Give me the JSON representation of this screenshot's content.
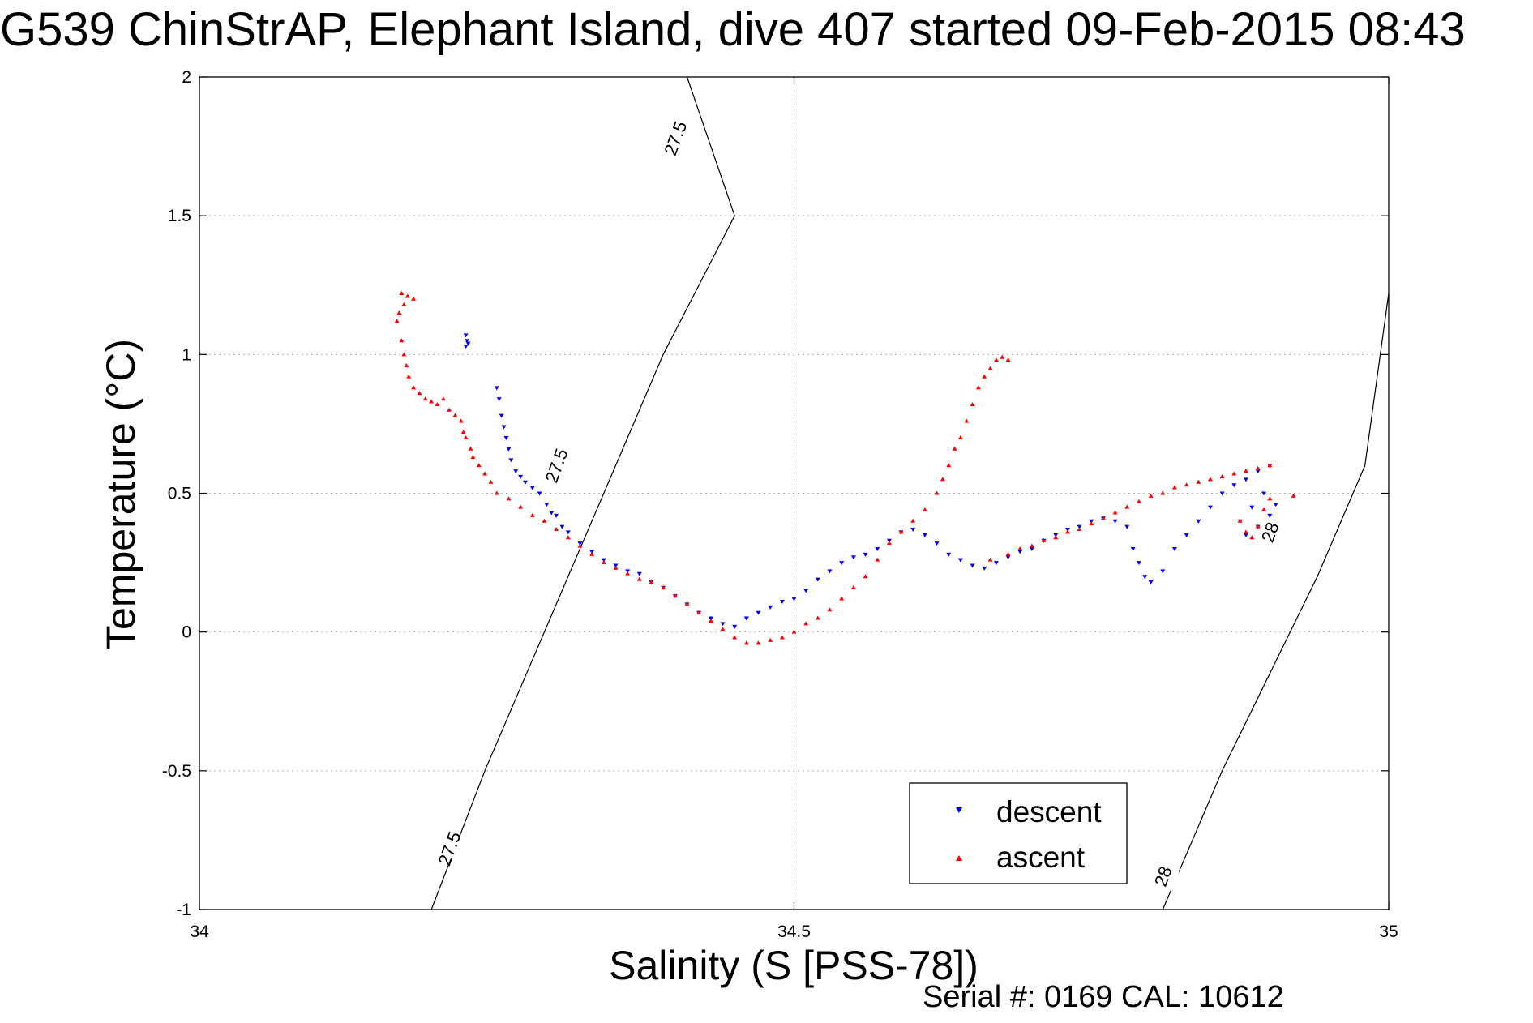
{
  "chart_data": {
    "type": "scatter",
    "title": "G539 ChinStrAP, Elephant Island, dive 407 started 09-Feb-2015 08:43",
    "xlabel": "Salinity (S [PSS-78])",
    "ylabel": "Temperature (°C)",
    "xlim": [
      34,
      35
    ],
    "ylim": [
      -1,
      2
    ],
    "xticks": [
      "34",
      "34.5",
      "35"
    ],
    "yticks": [
      "-1",
      "-0.5",
      "0",
      "0.5",
      "1",
      "1.5",
      "2"
    ],
    "grid": true,
    "legend_position": "bottom-right",
    "footer": "Serial #: 0169 CAL: 10612",
    "density_contours": [
      {
        "label": "27.5",
        "points": [
          [
            34.195,
            -1.0
          ],
          [
            34.24,
            -0.5
          ],
          [
            34.31,
            0.2
          ],
          [
            34.34,
            0.5
          ],
          [
            34.39,
            1.0
          ],
          [
            34.45,
            1.5
          ],
          [
            34.41,
            2.0
          ]
        ],
        "label_positions": [
          [
            34.21,
            -0.78
          ],
          [
            34.3,
            0.6
          ],
          [
            34.4,
            1.78
          ]
        ]
      },
      {
        "label": "28",
        "points": [
          [
            34.81,
            -1.0
          ],
          [
            34.86,
            -0.5
          ],
          [
            34.94,
            0.2
          ],
          [
            34.98,
            0.6
          ],
          [
            35.0,
            1.22
          ]
        ],
        "label_positions": [
          [
            34.81,
            -0.88
          ],
          [
            34.9,
            0.36
          ]
        ]
      }
    ],
    "series": [
      {
        "name": "descent",
        "color": "#0000ff",
        "marker": "triangle-down",
        "points": [
          [
            34.224,
            1.07
          ],
          [
            34.225,
            1.05
          ],
          [
            34.224,
            1.03
          ],
          [
            34.226,
            1.04
          ],
          [
            34.25,
            0.88
          ],
          [
            34.252,
            0.84
          ],
          [
            34.254,
            0.78
          ],
          [
            34.256,
            0.74
          ],
          [
            34.258,
            0.7
          ],
          [
            34.26,
            0.66
          ],
          [
            34.262,
            0.62
          ],
          [
            34.266,
            0.58
          ],
          [
            34.27,
            0.56
          ],
          [
            34.274,
            0.54
          ],
          [
            34.28,
            0.52
          ],
          [
            34.286,
            0.5
          ],
          [
            34.292,
            0.46
          ],
          [
            34.296,
            0.43
          ],
          [
            34.3,
            0.42
          ],
          [
            34.305,
            0.38
          ],
          [
            34.31,
            0.36
          ],
          [
            34.32,
            0.32
          ],
          [
            34.33,
            0.29
          ],
          [
            34.34,
            0.26
          ],
          [
            34.35,
            0.24
          ],
          [
            34.36,
            0.22
          ],
          [
            34.37,
            0.21
          ],
          [
            34.38,
            0.18
          ],
          [
            34.39,
            0.16
          ],
          [
            34.4,
            0.13
          ],
          [
            34.41,
            0.1
          ],
          [
            34.42,
            0.07
          ],
          [
            34.43,
            0.05
          ],
          [
            34.44,
            0.03
          ],
          [
            34.45,
            0.02
          ],
          [
            34.46,
            0.05
          ],
          [
            34.47,
            0.07
          ],
          [
            34.48,
            0.09
          ],
          [
            34.49,
            0.11
          ],
          [
            34.5,
            0.12
          ],
          [
            34.51,
            0.15
          ],
          [
            34.52,
            0.19
          ],
          [
            34.53,
            0.22
          ],
          [
            34.54,
            0.25
          ],
          [
            34.55,
            0.27
          ],
          [
            34.56,
            0.28
          ],
          [
            34.57,
            0.3
          ],
          [
            34.58,
            0.33
          ],
          [
            34.59,
            0.36
          ],
          [
            34.6,
            0.37
          ],
          [
            34.61,
            0.35
          ],
          [
            34.62,
            0.32
          ],
          [
            34.63,
            0.28
          ],
          [
            34.64,
            0.26
          ],
          [
            34.65,
            0.24
          ],
          [
            34.66,
            0.23
          ],
          [
            34.67,
            0.25
          ],
          [
            34.68,
            0.27
          ],
          [
            34.69,
            0.29
          ],
          [
            34.7,
            0.3
          ],
          [
            34.71,
            0.33
          ],
          [
            34.72,
            0.35
          ],
          [
            34.73,
            0.37
          ],
          [
            34.74,
            0.38
          ],
          [
            34.75,
            0.4
          ],
          [
            34.76,
            0.41
          ],
          [
            34.77,
            0.4
          ],
          [
            34.78,
            0.38
          ],
          [
            34.785,
            0.3
          ],
          [
            34.79,
            0.25
          ],
          [
            34.795,
            0.2
          ],
          [
            34.8,
            0.18
          ],
          [
            34.81,
            0.22
          ],
          [
            34.82,
            0.3
          ],
          [
            34.83,
            0.35
          ],
          [
            34.84,
            0.4
          ],
          [
            34.85,
            0.45
          ],
          [
            34.86,
            0.5
          ],
          [
            34.87,
            0.53
          ],
          [
            34.88,
            0.55
          ],
          [
            34.89,
            0.58
          ],
          [
            34.9,
            0.6
          ],
          [
            34.895,
            0.5
          ],
          [
            34.885,
            0.45
          ],
          [
            34.875,
            0.4
          ],
          [
            34.88,
            0.35
          ],
          [
            34.89,
            0.38
          ],
          [
            34.9,
            0.42
          ],
          [
            34.905,
            0.46
          ]
        ]
      },
      {
        "name": "ascent",
        "color": "#ff0000",
        "marker": "triangle-up",
        "points": [
          [
            34.17,
            1.22
          ],
          [
            34.175,
            1.21
          ],
          [
            34.18,
            1.2
          ],
          [
            34.172,
            1.18
          ],
          [
            34.168,
            1.15
          ],
          [
            34.166,
            1.12
          ],
          [
            34.17,
            1.05
          ],
          [
            34.172,
            1.0
          ],
          [
            34.174,
            0.96
          ],
          [
            34.176,
            0.92
          ],
          [
            34.18,
            0.88
          ],
          [
            34.185,
            0.86
          ],
          [
            34.19,
            0.84
          ],
          [
            34.195,
            0.83
          ],
          [
            34.2,
            0.82
          ],
          [
            34.205,
            0.84
          ],
          [
            34.21,
            0.8
          ],
          [
            34.215,
            0.78
          ],
          [
            34.22,
            0.76
          ],
          [
            34.222,
            0.72
          ],
          [
            34.224,
            0.7
          ],
          [
            34.228,
            0.66
          ],
          [
            34.23,
            0.63
          ],
          [
            34.235,
            0.6
          ],
          [
            34.24,
            0.57
          ],
          [
            34.245,
            0.54
          ],
          [
            34.25,
            0.5
          ],
          [
            34.26,
            0.48
          ],
          [
            34.27,
            0.45
          ],
          [
            34.28,
            0.42
          ],
          [
            34.29,
            0.4
          ],
          [
            34.3,
            0.37
          ],
          [
            34.31,
            0.34
          ],
          [
            34.32,
            0.31
          ],
          [
            34.33,
            0.28
          ],
          [
            34.34,
            0.25
          ],
          [
            34.35,
            0.23
          ],
          [
            34.36,
            0.21
          ],
          [
            34.37,
            0.19
          ],
          [
            34.38,
            0.18
          ],
          [
            34.39,
            0.16
          ],
          [
            34.4,
            0.13
          ],
          [
            34.41,
            0.1
          ],
          [
            34.42,
            0.07
          ],
          [
            34.43,
            0.04
          ],
          [
            34.44,
            0.01
          ],
          [
            34.45,
            -0.02
          ],
          [
            34.46,
            -0.04
          ],
          [
            34.47,
            -0.04
          ],
          [
            34.48,
            -0.03
          ],
          [
            34.49,
            -0.02
          ],
          [
            34.5,
            0.0
          ],
          [
            34.51,
            0.03
          ],
          [
            34.52,
            0.05
          ],
          [
            34.53,
            0.08
          ],
          [
            34.54,
            0.12
          ],
          [
            34.55,
            0.16
          ],
          [
            34.56,
            0.2
          ],
          [
            34.57,
            0.26
          ],
          [
            34.58,
            0.32
          ],
          [
            34.59,
            0.36
          ],
          [
            34.6,
            0.4
          ],
          [
            34.61,
            0.44
          ],
          [
            34.62,
            0.5
          ],
          [
            34.625,
            0.55
          ],
          [
            34.63,
            0.6
          ],
          [
            34.635,
            0.66
          ],
          [
            34.64,
            0.7
          ],
          [
            34.645,
            0.76
          ],
          [
            34.65,
            0.82
          ],
          [
            34.655,
            0.88
          ],
          [
            34.66,
            0.92
          ],
          [
            34.665,
            0.95
          ],
          [
            34.67,
            0.98
          ],
          [
            34.675,
            0.99
          ],
          [
            34.68,
            0.98
          ],
          [
            34.665,
            0.26
          ],
          [
            34.68,
            0.28
          ],
          [
            34.69,
            0.3
          ],
          [
            34.7,
            0.31
          ],
          [
            34.71,
            0.33
          ],
          [
            34.72,
            0.34
          ],
          [
            34.73,
            0.36
          ],
          [
            34.74,
            0.37
          ],
          [
            34.75,
            0.39
          ],
          [
            34.76,
            0.41
          ],
          [
            34.77,
            0.43
          ],
          [
            34.78,
            0.45
          ],
          [
            34.79,
            0.47
          ],
          [
            34.8,
            0.49
          ],
          [
            34.81,
            0.5
          ],
          [
            34.82,
            0.52
          ],
          [
            34.83,
            0.53
          ],
          [
            34.84,
            0.54
          ],
          [
            34.85,
            0.55
          ],
          [
            34.86,
            0.56
          ],
          [
            34.87,
            0.57
          ],
          [
            34.88,
            0.58
          ],
          [
            34.89,
            0.59
          ],
          [
            34.9,
            0.6
          ],
          [
            34.875,
            0.4
          ],
          [
            34.88,
            0.36
          ],
          [
            34.885,
            0.34
          ],
          [
            34.89,
            0.38
          ],
          [
            34.895,
            0.44
          ],
          [
            34.9,
            0.48
          ],
          [
            34.92,
            0.49
          ]
        ]
      }
    ]
  }
}
